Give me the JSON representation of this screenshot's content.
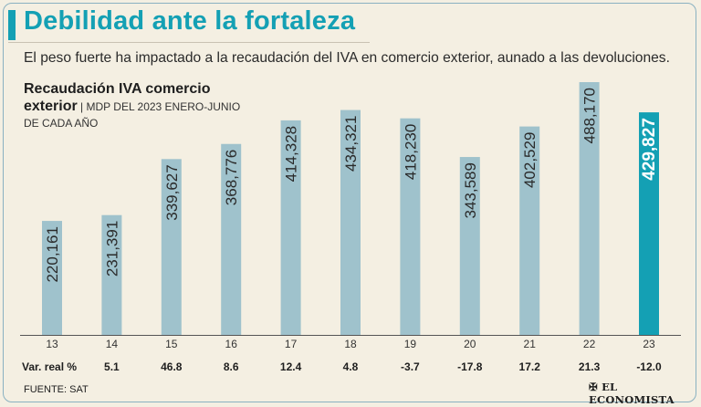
{
  "headline": "Debilidad ante la fortaleza",
  "subtitle": "El peso fuerte ha impactado a la recaudación del IVA en comercio exterior, aunado a las devoluciones.",
  "chart_title_line1": "Recaudación IVA comercio",
  "chart_title_line2": "exterior",
  "chart_unit_sep": " | ",
  "chart_unit_line1": "MDP DEL 2023  ENERO-JUNIO",
  "chart_unit_line2": "DE CADA AÑO",
  "source": "FUENTE: SAT",
  "logo_text": "EL ECONOMISTA",
  "colors": {
    "bar": "#9fc2cc",
    "highlight": "#14a0b4",
    "accent": "#14a0b4",
    "background": "#f4efe2"
  },
  "chart_data": {
    "type": "bar",
    "title": "Recaudación IVA comercio exterior",
    "ylabel": "MDP del 2023, enero-junio de cada año",
    "categories": [
      "13",
      "14",
      "15",
      "16",
      "17",
      "18",
      "19",
      "20",
      "21",
      "22",
      "23"
    ],
    "values": [
      220161,
      231391,
      339627,
      368776,
      414328,
      434321,
      418230,
      343589,
      402529,
      488170,
      429827
    ],
    "value_labels": [
      "220,161",
      "231,391",
      "339,627",
      "368,776",
      "414,328",
      "434,321",
      "418,230",
      "343,589",
      "402,529",
      "488,170",
      "429,827"
    ],
    "highlight_index": 10,
    "ylim": [
      0,
      488170
    ],
    "real_change_label": "Var. real %",
    "real_change": [
      "5.1",
      "46.8",
      "8.6",
      "12.4",
      "4.8",
      "-3.7",
      "-17.8",
      "17.2",
      "21.3",
      "-12.0"
    ]
  }
}
